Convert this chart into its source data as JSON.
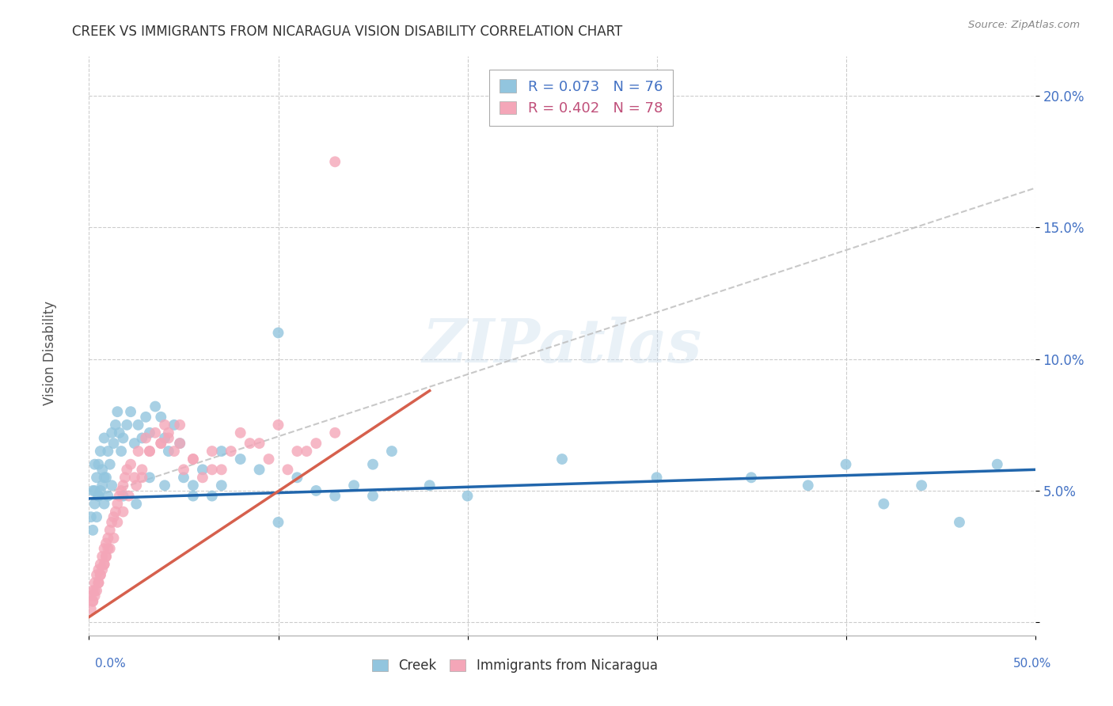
{
  "title": "CREEK VS IMMIGRANTS FROM NICARAGUA VISION DISABILITY CORRELATION CHART",
  "source": "Source: ZipAtlas.com",
  "ylabel": "Vision Disability",
  "xlim": [
    0.0,
    0.5
  ],
  "ylim": [
    -0.005,
    0.215
  ],
  "creek_color": "#92c5de",
  "nicaragua_color": "#f4a6b8",
  "creek_trend_color": "#2166ac",
  "nicaragua_trend_color": "#d6604d",
  "background_color": "#ffffff",
  "watermark": "ZIPatlas",
  "creek_trend": [
    0.0,
    0.5,
    0.047,
    0.058
  ],
  "nicaragua_trend": [
    0.0,
    0.18,
    0.002,
    0.088
  ],
  "dashed_trend": [
    0.0,
    0.5,
    0.047,
    0.165
  ],
  "creek_x": [
    0.001,
    0.002,
    0.002,
    0.003,
    0.003,
    0.004,
    0.004,
    0.005,
    0.005,
    0.006,
    0.006,
    0.007,
    0.007,
    0.008,
    0.008,
    0.009,
    0.01,
    0.01,
    0.011,
    0.012,
    0.013,
    0.014,
    0.015,
    0.016,
    0.017,
    0.018,
    0.02,
    0.022,
    0.024,
    0.026,
    0.028,
    0.03,
    0.032,
    0.035,
    0.038,
    0.04,
    0.042,
    0.045,
    0.048,
    0.05,
    0.055,
    0.06,
    0.065,
    0.07,
    0.08,
    0.09,
    0.1,
    0.11,
    0.12,
    0.13,
    0.14,
    0.15,
    0.16,
    0.18,
    0.2,
    0.25,
    0.3,
    0.35,
    0.38,
    0.4,
    0.42,
    0.44,
    0.46,
    0.48,
    0.003,
    0.005,
    0.008,
    0.012,
    0.018,
    0.025,
    0.032,
    0.04,
    0.055,
    0.07,
    0.1,
    0.15
  ],
  "creek_y": [
    0.04,
    0.035,
    0.05,
    0.045,
    0.06,
    0.04,
    0.055,
    0.048,
    0.06,
    0.05,
    0.065,
    0.052,
    0.058,
    0.045,
    0.07,
    0.055,
    0.048,
    0.065,
    0.06,
    0.072,
    0.068,
    0.075,
    0.08,
    0.072,
    0.065,
    0.07,
    0.075,
    0.08,
    0.068,
    0.075,
    0.07,
    0.078,
    0.072,
    0.082,
    0.078,
    0.07,
    0.065,
    0.075,
    0.068,
    0.055,
    0.052,
    0.058,
    0.048,
    0.065,
    0.062,
    0.058,
    0.11,
    0.055,
    0.05,
    0.048,
    0.052,
    0.048,
    0.065,
    0.052,
    0.048,
    0.062,
    0.055,
    0.055,
    0.052,
    0.06,
    0.045,
    0.052,
    0.038,
    0.06,
    0.05,
    0.048,
    0.055,
    0.052,
    0.048,
    0.045,
    0.055,
    0.052,
    0.048,
    0.052,
    0.038,
    0.06
  ],
  "nicaragua_x": [
    0.001,
    0.001,
    0.002,
    0.002,
    0.003,
    0.003,
    0.004,
    0.004,
    0.005,
    0.005,
    0.006,
    0.006,
    0.007,
    0.007,
    0.008,
    0.008,
    0.009,
    0.009,
    0.01,
    0.01,
    0.011,
    0.012,
    0.013,
    0.014,
    0.015,
    0.016,
    0.017,
    0.018,
    0.019,
    0.02,
    0.022,
    0.024,
    0.026,
    0.028,
    0.03,
    0.032,
    0.035,
    0.038,
    0.04,
    0.042,
    0.045,
    0.048,
    0.05,
    0.055,
    0.06,
    0.065,
    0.07,
    0.08,
    0.09,
    0.1,
    0.11,
    0.12,
    0.13,
    0.002,
    0.003,
    0.005,
    0.006,
    0.008,
    0.009,
    0.011,
    0.013,
    0.015,
    0.018,
    0.021,
    0.025,
    0.028,
    0.032,
    0.038,
    0.042,
    0.048,
    0.055,
    0.065,
    0.075,
    0.085,
    0.095,
    0.105,
    0.115,
    0.13
  ],
  "nicaragua_y": [
    0.01,
    0.005,
    0.012,
    0.008,
    0.015,
    0.01,
    0.018,
    0.012,
    0.02,
    0.015,
    0.022,
    0.018,
    0.025,
    0.02,
    0.028,
    0.022,
    0.03,
    0.025,
    0.032,
    0.028,
    0.035,
    0.038,
    0.04,
    0.042,
    0.045,
    0.048,
    0.05,
    0.052,
    0.055,
    0.058,
    0.06,
    0.055,
    0.065,
    0.058,
    0.07,
    0.065,
    0.072,
    0.068,
    0.075,
    0.07,
    0.065,
    0.068,
    0.058,
    0.062,
    0.055,
    0.065,
    0.058,
    0.072,
    0.068,
    0.075,
    0.065,
    0.068,
    0.072,
    0.008,
    0.012,
    0.015,
    0.018,
    0.022,
    0.025,
    0.028,
    0.032,
    0.038,
    0.042,
    0.048,
    0.052,
    0.055,
    0.065,
    0.068,
    0.072,
    0.075,
    0.062,
    0.058,
    0.065,
    0.068,
    0.062,
    0.058,
    0.065,
    0.175
  ]
}
